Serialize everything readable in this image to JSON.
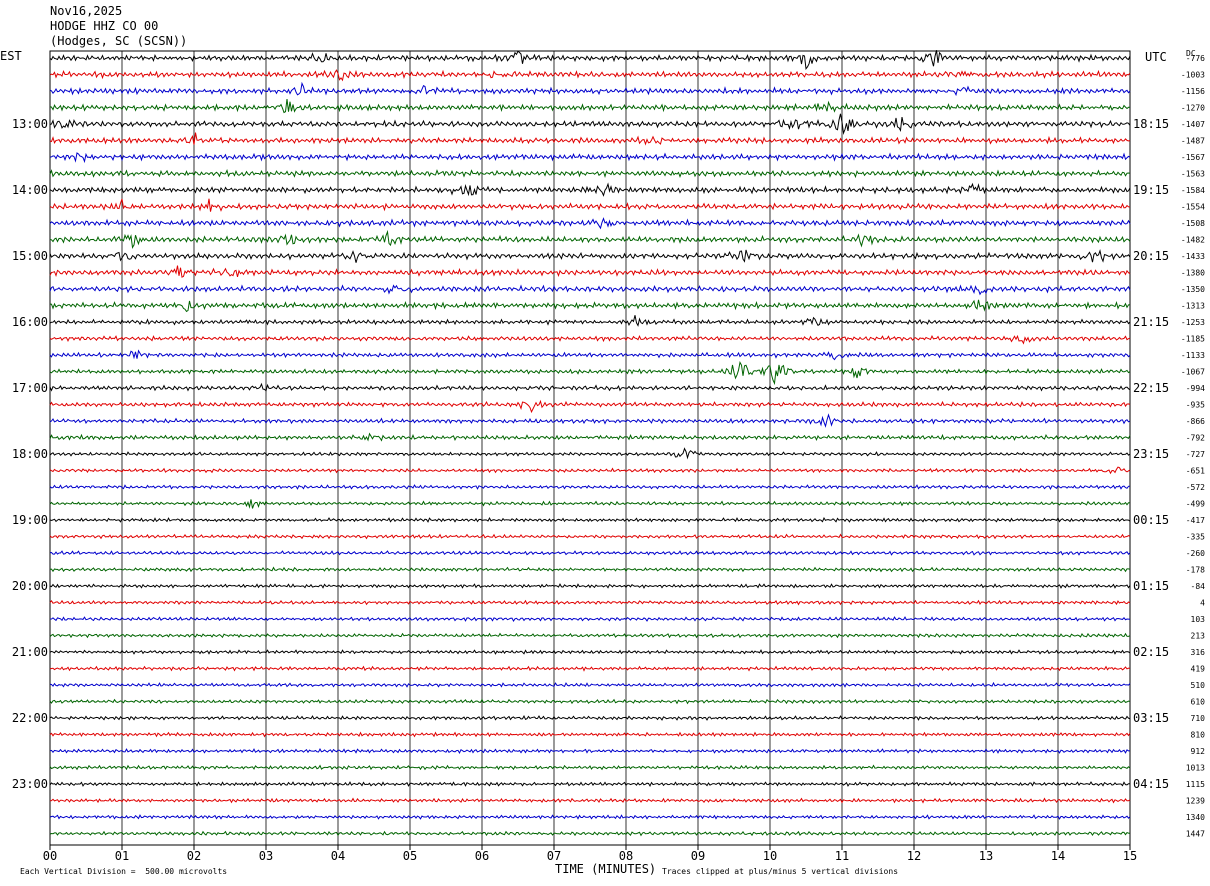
{
  "header": {
    "date": "Nov16,2025",
    "station": "HODGE HHZ CO 00",
    "location": "(Hodges, SC (SCSN))"
  },
  "left_zone": "EST",
  "right_zone": "UTC",
  "dc_label": "DC",
  "footer": {
    "scale_note": "Each Vertical Division =  500.00 microvolts",
    "clip_note": "Traces clipped at plus/minus 5 vertical divisions"
  },
  "colors": [
    "#000000",
    "#e00000",
    "#0000cc",
    "#006400"
  ],
  "chart_data": {
    "type": "line",
    "xlabel": "TIME (MINUTES)",
    "xlim": [
      0,
      15
    ],
    "x_ticks": [
      "00",
      "01",
      "02",
      "03",
      "04",
      "05",
      "06",
      "07",
      "08",
      "09",
      "10",
      "11",
      "12",
      "13",
      "14",
      "15"
    ],
    "left_hour_labels": [
      "13:00",
      "14:00",
      "15:00",
      "16:00",
      "17:00",
      "18:00",
      "19:00",
      "20:00",
      "21:00",
      "22:00",
      "23:00"
    ],
    "right_hour_labels": [
      "18:15",
      "19:15",
      "20:15",
      "21:15",
      "22:15",
      "23:15",
      "00:15",
      "01:15",
      "02:15",
      "03:15",
      "04:15"
    ],
    "first_hour_label_trace": 4,
    "traces_per_hour": 4,
    "dc_offsets": [
      -776,
      -1003,
      -1156,
      -1270,
      -1407,
      -1487,
      -1567,
      -1563,
      -1584,
      -1554,
      -1508,
      -1482,
      -1433,
      -1380,
      -1350,
      -1313,
      -1253,
      -1185,
      -1133,
      -1067,
      -994,
      -935,
      -866,
      -792,
      -727,
      -651,
      -572,
      -499,
      -417,
      -335,
      -260,
      -178,
      -84,
      4,
      103,
      213,
      316,
      419,
      510,
      610,
      710,
      810,
      912,
      1013,
      1115,
      1239,
      1340,
      1447
    ],
    "events": [
      {
        "trace": 0,
        "minute": 3.7,
        "amp": 1.6
      },
      {
        "trace": 0,
        "minute": 6.5,
        "amp": 1.4
      },
      {
        "trace": 0,
        "minute": 10.5,
        "amp": 1.5
      },
      {
        "trace": 0,
        "minute": 12.3,
        "amp": 1.7
      },
      {
        "trace": 1,
        "minute": 4.0,
        "amp": 1.1
      },
      {
        "trace": 1,
        "minute": 6.2,
        "amp": 1.0
      },
      {
        "trace": 1,
        "minute": 12.6,
        "amp": 1.0
      },
      {
        "trace": 2,
        "minute": 3.5,
        "amp": 1.2
      },
      {
        "trace": 2,
        "minute": 5.2,
        "amp": 1.0
      },
      {
        "trace": 2,
        "minute": 12.7,
        "amp": 1.0
      },
      {
        "trace": 3,
        "minute": 3.3,
        "amp": 1.1
      },
      {
        "trace": 3,
        "minute": 10.8,
        "amp": 1.0
      },
      {
        "trace": 4,
        "minute": 0.2,
        "amp": 1.0
      },
      {
        "trace": 4,
        "minute": 10.3,
        "amp": 1.4
      },
      {
        "trace": 4,
        "minute": 11.0,
        "amp": 1.8
      },
      {
        "trace": 4,
        "minute": 11.8,
        "amp": 1.3
      },
      {
        "trace": 5,
        "minute": 2.0,
        "amp": 0.9
      },
      {
        "trace": 5,
        "minute": 8.4,
        "amp": 0.9
      },
      {
        "trace": 6,
        "minute": 0.4,
        "amp": 0.8
      },
      {
        "trace": 8,
        "minute": 5.8,
        "amp": 1.5
      },
      {
        "trace": 8,
        "minute": 7.7,
        "amp": 1.4
      },
      {
        "trace": 8,
        "minute": 12.8,
        "amp": 1.1
      },
      {
        "trace": 9,
        "minute": 1.0,
        "amp": 1.1
      },
      {
        "trace": 9,
        "minute": 2.2,
        "amp": 0.9
      },
      {
        "trace": 10,
        "minute": 7.7,
        "amp": 1.0
      },
      {
        "trace": 11,
        "minute": 1.1,
        "amp": 1.4
      },
      {
        "trace": 11,
        "minute": 3.3,
        "amp": 1.1
      },
      {
        "trace": 11,
        "minute": 4.7,
        "amp": 1.0
      },
      {
        "trace": 11,
        "minute": 11.3,
        "amp": 1.0
      },
      {
        "trace": 12,
        "minute": 1.0,
        "amp": 1.2
      },
      {
        "trace": 12,
        "minute": 4.2,
        "amp": 1.4
      },
      {
        "trace": 12,
        "minute": 9.6,
        "amp": 1.3
      },
      {
        "trace": 12,
        "minute": 14.5,
        "amp": 1.3
      },
      {
        "trace": 13,
        "minute": 1.8,
        "amp": 1.4
      },
      {
        "trace": 13,
        "minute": 2.5,
        "amp": 1.0
      },
      {
        "trace": 14,
        "minute": 4.8,
        "amp": 1.0
      },
      {
        "trace": 14,
        "minute": 12.9,
        "amp": 1.2
      },
      {
        "trace": 15,
        "minute": 1.9,
        "amp": 1.0
      },
      {
        "trace": 15,
        "minute": 12.9,
        "amp": 1.0
      },
      {
        "trace": 16,
        "minute": 8.1,
        "amp": 1.0
      },
      {
        "trace": 16,
        "minute": 10.6,
        "amp": 0.8
      },
      {
        "trace": 17,
        "minute": 13.5,
        "amp": 1.0
      },
      {
        "trace": 18,
        "minute": 1.2,
        "amp": 1.0
      },
      {
        "trace": 18,
        "minute": 10.9,
        "amp": 1.0
      },
      {
        "trace": 19,
        "minute": 9.6,
        "amp": 2.6
      },
      {
        "trace": 19,
        "minute": 10.1,
        "amp": 2.6
      },
      {
        "trace": 19,
        "minute": 11.2,
        "amp": 1.0
      },
      {
        "trace": 20,
        "minute": 2.9,
        "amp": 0.9
      },
      {
        "trace": 21,
        "minute": 6.7,
        "amp": 1.0
      },
      {
        "trace": 22,
        "minute": 10.8,
        "amp": 0.9
      },
      {
        "trace": 23,
        "minute": 4.5,
        "amp": 1.0
      },
      {
        "trace": 24,
        "minute": 8.8,
        "amp": 1.0
      },
      {
        "trace": 25,
        "minute": 14.8,
        "amp": 0.8
      },
      {
        "trace": 27,
        "minute": 2.8,
        "amp": 0.8
      }
    ]
  }
}
